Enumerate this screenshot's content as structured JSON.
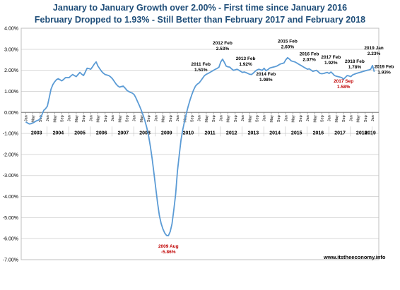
{
  "title_lines": [
    "January to January Growth over 2.00%  - First time since January 2016",
    "February Dropped to 1.93%  - Still Better than  February 2017 and February 2018"
  ],
  "title_color": "#1f4e79",
  "credit": "www.itstheeconomy.info",
  "chart_data": {
    "type": "line",
    "title": "January to January Growth over 2.00%  - First time since January 2016 / February Dropped to 1.93%  - Still Better than  February 2017 and February 2018",
    "ylim": [
      -7.0,
      4.0
    ],
    "y_ticks": [
      4.0,
      3.0,
      2.0,
      1.0,
      0.0,
      -1.0,
      -2.0,
      -3.0,
      -4.0,
      -5.0,
      -6.0,
      -7.0
    ],
    "y_tick_labels": [
      "4.00%",
      "3.00%",
      "2.00%",
      "1.00%",
      "0.00%",
      "-1.00%",
      "-2.00%",
      "-3.00%",
      "-4.00%",
      "-5.00%",
      "-6.00%",
      "-7.00%"
    ],
    "grid": true,
    "line_color": "#5b9bd5",
    "month_tick_labels": [
      "Jan",
      "May",
      "Sep"
    ],
    "year_labels": [
      "2003",
      "2004",
      "2005",
      "2006",
      "2007",
      "2008",
      "2009",
      "2010",
      "2011",
      "2012",
      "2013",
      "2014",
      "2015",
      "2016",
      "2017",
      "2018",
      "2019"
    ],
    "x_start": "2003-01",
    "anchors": [
      [
        "2003-01",
        -0.45
      ],
      [
        "2003-03",
        -0.55
      ],
      [
        "2003-05",
        -0.5
      ],
      [
        "2003-07",
        -0.4
      ],
      [
        "2003-09",
        -0.3
      ],
      [
        "2003-11",
        0.1
      ],
      [
        "2004-01",
        0.3
      ],
      [
        "2004-03",
        1.1
      ],
      [
        "2004-05",
        1.45
      ],
      [
        "2004-07",
        1.6
      ],
      [
        "2004-09",
        1.5
      ],
      [
        "2004-11",
        1.65
      ],
      [
        "2005-01",
        1.65
      ],
      [
        "2005-03",
        1.8
      ],
      [
        "2005-05",
        1.7
      ],
      [
        "2005-07",
        1.9
      ],
      [
        "2005-09",
        1.75
      ],
      [
        "2005-11",
        2.1
      ],
      [
        "2006-01",
        2.05
      ],
      [
        "2006-03",
        2.3
      ],
      [
        "2006-04",
        2.4
      ],
      [
        "2006-05",
        2.2
      ],
      [
        "2006-07",
        1.95
      ],
      [
        "2006-09",
        1.8
      ],
      [
        "2006-11",
        1.75
      ],
      [
        "2007-01",
        1.6
      ],
      [
        "2007-03",
        1.35
      ],
      [
        "2007-05",
        1.2
      ],
      [
        "2007-07",
        1.25
      ],
      [
        "2007-09",
        1.05
      ],
      [
        "2007-11",
        0.95
      ],
      [
        "2008-01",
        0.85
      ],
      [
        "2008-03",
        0.5
      ],
      [
        "2008-05",
        0.1
      ],
      [
        "2008-07",
        -0.4
      ],
      [
        "2008-09",
        -1.1
      ],
      [
        "2008-11",
        -2.2
      ],
      [
        "2009-01",
        -3.6
      ],
      [
        "2009-03",
        -4.9
      ],
      [
        "2009-05",
        -5.55
      ],
      [
        "2009-07",
        -5.85
      ],
      [
        "2009-08",
        -5.86
      ],
      [
        "2009-10",
        -5.3
      ],
      [
        "2009-12",
        -3.9
      ],
      [
        "2010-01",
        -2.8
      ],
      [
        "2010-03",
        -1.3
      ],
      [
        "2010-05",
        -0.4
      ],
      [
        "2010-07",
        0.3
      ],
      [
        "2010-09",
        0.85
      ],
      [
        "2010-11",
        1.25
      ],
      [
        "2011-01",
        1.4
      ],
      [
        "2011-02",
        1.51
      ],
      [
        "2011-04",
        1.75
      ],
      [
        "2011-06",
        1.85
      ],
      [
        "2011-08",
        1.95
      ],
      [
        "2011-10",
        2.05
      ],
      [
        "2011-12",
        2.15
      ],
      [
        "2012-01",
        2.4
      ],
      [
        "2012-02",
        2.53
      ],
      [
        "2012-04",
        2.2
      ],
      [
        "2012-06",
        2.15
      ],
      [
        "2012-08",
        2.0
      ],
      [
        "2012-10",
        2.05
      ],
      [
        "2012-12",
        1.95
      ],
      [
        "2013-01",
        1.9
      ],
      [
        "2013-02",
        1.92
      ],
      [
        "2013-04",
        1.85
      ],
      [
        "2013-06",
        1.8
      ],
      [
        "2013-08",
        1.95
      ],
      [
        "2013-10",
        2.05
      ],
      [
        "2013-12",
        2.0
      ],
      [
        "2014-01",
        2.1
      ],
      [
        "2014-02",
        1.98
      ],
      [
        "2014-04",
        2.1
      ],
      [
        "2014-06",
        2.15
      ],
      [
        "2014-08",
        2.2
      ],
      [
        "2014-10",
        2.3
      ],
      [
        "2014-12",
        2.35
      ],
      [
        "2015-01",
        2.5
      ],
      [
        "2015-02",
        2.6
      ],
      [
        "2015-04",
        2.45
      ],
      [
        "2015-06",
        2.4
      ],
      [
        "2015-08",
        2.3
      ],
      [
        "2015-10",
        2.2
      ],
      [
        "2015-12",
        2.1
      ],
      [
        "2016-01",
        2.05
      ],
      [
        "2016-02",
        2.07
      ],
      [
        "2016-04",
        1.95
      ],
      [
        "2016-06",
        2.0
      ],
      [
        "2016-08",
        1.85
      ],
      [
        "2016-10",
        1.85
      ],
      [
        "2016-12",
        1.9
      ],
      [
        "2017-01",
        1.85
      ],
      [
        "2017-02",
        1.92
      ],
      [
        "2017-04",
        1.75
      ],
      [
        "2017-06",
        1.7
      ],
      [
        "2017-08",
        1.65
      ],
      [
        "2017-09",
        1.58
      ],
      [
        "2017-11",
        1.75
      ],
      [
        "2018-01",
        1.7
      ],
      [
        "2018-02",
        1.78
      ],
      [
        "2018-04",
        1.85
      ],
      [
        "2018-06",
        1.9
      ],
      [
        "2018-08",
        1.95
      ],
      [
        "2018-10",
        2.0
      ],
      [
        "2018-12",
        2.05
      ],
      [
        "2019-01",
        2.23
      ],
      [
        "2019-02",
        1.93
      ]
    ],
    "annotations": [
      {
        "date": "2011-02",
        "label": "2011 Feb",
        "value_label": "1.51%",
        "color": "#000000"
      },
      {
        "date": "2012-02",
        "label": "2012 Feb",
        "value_label": "2.53%",
        "color": "#000000"
      },
      {
        "date": "2013-02",
        "label": "2013 Feb",
        "value_label": "1.92%",
        "color": "#000000"
      },
      {
        "date": "2014-02",
        "label": "2014 Feb",
        "value_label": "1.98%",
        "color": "#000000"
      },
      {
        "date": "2015-02",
        "label": "2015 Feb",
        "value_label": "2.60%",
        "color": "#000000"
      },
      {
        "date": "2016-02",
        "label": "2016 Feb",
        "value_label": "2.07%",
        "color": "#000000"
      },
      {
        "date": "2017-02",
        "label": "2017 Feb",
        "value_label": "1.92%",
        "color": "#000000"
      },
      {
        "date": "2017-09",
        "label": "2017 Sep",
        "value_label": "1.58%",
        "color": "#c00000"
      },
      {
        "date": "2018-02",
        "label": "2018 Feb",
        "value_label": "1.78%",
        "color": "#000000"
      },
      {
        "date": "2019-01",
        "label": "2019 Jan",
        "value_label": "2.23%",
        "color": "#000000"
      },
      {
        "date": "2019-02",
        "label": "2019 Feb",
        "value_label": "1.93%",
        "color": "#000000"
      },
      {
        "date": "2009-08",
        "label": "2009 Aug",
        "value_label": "-5.86%",
        "color": "#c00000"
      }
    ]
  }
}
